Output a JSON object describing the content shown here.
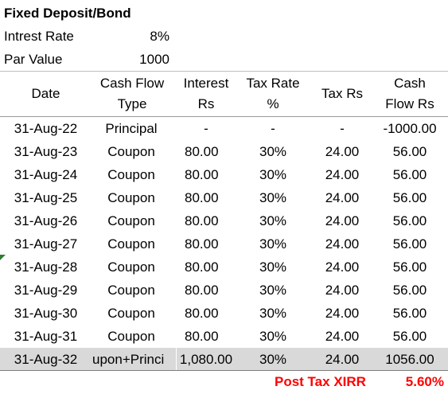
{
  "title": "Fixed Deposit/Bond",
  "params": {
    "rate_label": "Intrest Rate",
    "rate_value": "8%",
    "par_label": "Par Value",
    "par_value": "1000"
  },
  "headers": {
    "date": "Date",
    "type_line1": "Cash Flow",
    "type_line2": "Type",
    "interest_line1": "Interest",
    "interest_line2": "Rs",
    "rate_line1": "Tax Rate",
    "rate_line2": "%",
    "tax": "Tax Rs",
    "cf_line1": "Cash",
    "cf_line2": "Flow Rs"
  },
  "rows": [
    {
      "date": "31-Aug-22",
      "type": "Principal",
      "interest": "-",
      "rate": "-",
      "tax": "-",
      "cash_flow": "-1000.00"
    },
    {
      "date": "31-Aug-23",
      "type": "Coupon",
      "interest": "80.00",
      "rate": "30%",
      "tax": "24.00",
      "cash_flow": "56.00"
    },
    {
      "date": "31-Aug-24",
      "type": "Coupon",
      "interest": "80.00",
      "rate": "30%",
      "tax": "24.00",
      "cash_flow": "56.00"
    },
    {
      "date": "31-Aug-25",
      "type": "Coupon",
      "interest": "80.00",
      "rate": "30%",
      "tax": "24.00",
      "cash_flow": "56.00"
    },
    {
      "date": "31-Aug-26",
      "type": "Coupon",
      "interest": "80.00",
      "rate": "30%",
      "tax": "24.00",
      "cash_flow": "56.00"
    },
    {
      "date": "31-Aug-27",
      "type": "Coupon",
      "interest": "80.00",
      "rate": "30%",
      "tax": "24.00",
      "cash_flow": "56.00"
    },
    {
      "date": "31-Aug-28",
      "type": "Coupon",
      "interest": "80.00",
      "rate": "30%",
      "tax": "24.00",
      "cash_flow": "56.00"
    },
    {
      "date": "31-Aug-29",
      "type": "Coupon",
      "interest": "80.00",
      "rate": "30%",
      "tax": "24.00",
      "cash_flow": "56.00"
    },
    {
      "date": "31-Aug-30",
      "type": "Coupon",
      "interest": "80.00",
      "rate": "30%",
      "tax": "24.00",
      "cash_flow": "56.00"
    },
    {
      "date": "31-Aug-31",
      "type": "Coupon",
      "interest": "80.00",
      "rate": "30%",
      "tax": "24.00",
      "cash_flow": "56.00"
    },
    {
      "date": "31-Aug-32",
      "type": "upon+Princi",
      "interest": "1,080.00",
      "rate": "30%",
      "tax": "24.00",
      "cash_flow": "1056.00"
    }
  ],
  "summary": {
    "label": "Post Tax XIRR",
    "value": "5.60%"
  },
  "colors": {
    "summary_text": "#ff0000",
    "highlight_row": "#d9d9d9",
    "comment_marker": "#2e7d32"
  }
}
